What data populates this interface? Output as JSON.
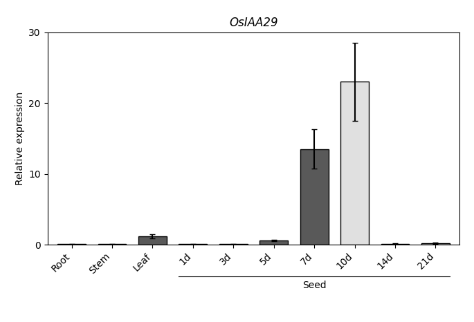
{
  "chart_data": {
    "type": "bar",
    "title": "OsIAA29",
    "ylabel": "Relative expression",
    "categories": [
      "Root",
      "Stem",
      "Leaf",
      "1d",
      "3d",
      "5d",
      "7d",
      "10d",
      "14d",
      "21d"
    ],
    "values": [
      0.08,
      0.08,
      1.2,
      0.08,
      0.08,
      0.6,
      13.5,
      23.0,
      0.15,
      0.18
    ],
    "errors": [
      0.04,
      0.04,
      0.3,
      0.04,
      0.04,
      0.12,
      2.8,
      5.5,
      0.05,
      0.08
    ],
    "colors": [
      "#595959",
      "#595959",
      "#595959",
      "#595959",
      "#595959",
      "#595959",
      "#595959",
      "#e0e0e0",
      "#e0e0e0",
      "#e0e0e0"
    ],
    "ylim": [
      0,
      30
    ],
    "yticks": [
      0,
      10,
      20,
      30
    ],
    "annotations": [
      {
        "text": "Seed",
        "from": "1d",
        "to": "21d"
      }
    ]
  }
}
